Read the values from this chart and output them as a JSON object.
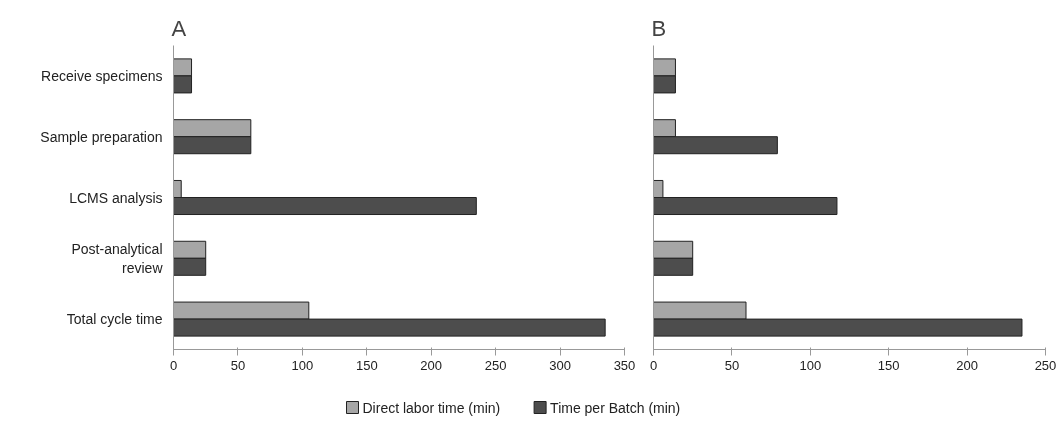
{
  "chart_data": [
    {
      "type": "bar",
      "orientation": "horizontal",
      "title": "A",
      "categories": [
        "Receive specimens",
        "Sample preparation",
        "LCMS analysis",
        "Post-analytical review",
        "Total cycle time"
      ],
      "series": [
        {
          "name": "Direct labor time (min)",
          "color": "#a6a6a6",
          "values": [
            14,
            60,
            6,
            25,
            105
          ]
        },
        {
          "name": "Time per Batch   (min)",
          "color": "#4d4d4d",
          "values": [
            14,
            60,
            235,
            25,
            335
          ]
        }
      ],
      "xlim": [
        0,
        350
      ],
      "xticks": [
        0,
        50,
        100,
        150,
        200,
        250,
        300,
        350
      ],
      "grid": false,
      "legend": "bottom"
    },
    {
      "type": "bar",
      "orientation": "horizontal",
      "title": "B",
      "categories": [
        "Receive specimens",
        "Sample preparation",
        "LCMS analysis",
        "Post-analytical review",
        "Total cycle time"
      ],
      "series": [
        {
          "color": "#a6a6a6",
          "values": [
            14,
            14,
            6,
            25,
            59
          ]
        },
        {
          "color": "#4d4d4d",
          "values": [
            14,
            79,
            117,
            25,
            235
          ]
        }
      ],
      "xlim": [
        0,
        250
      ],
      "xticks": [
        0,
        50,
        100,
        150,
        200,
        250
      ],
      "grid": false,
      "tick_labels": "x"
    }
  ]
}
